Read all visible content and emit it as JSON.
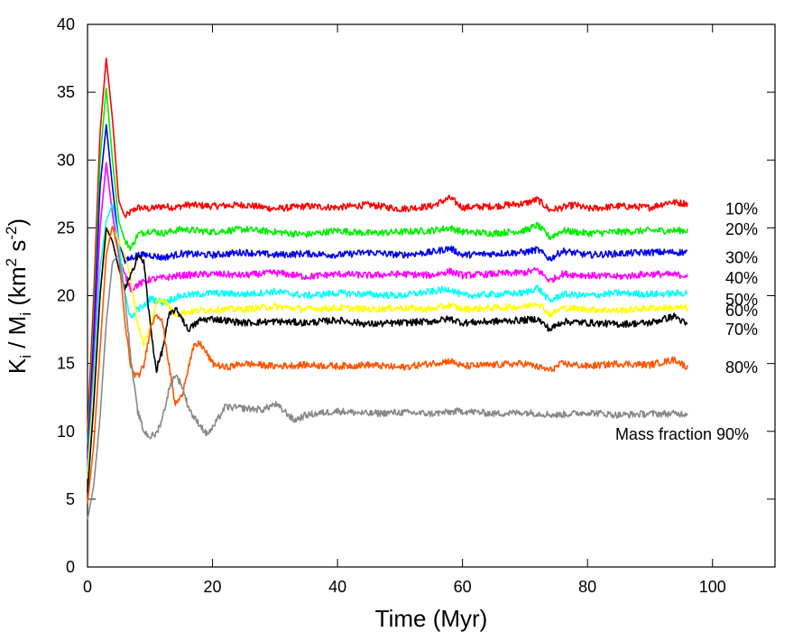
{
  "chart_data": {
    "type": "line",
    "title": "",
    "xlabel": "Time (Myr)",
    "ylabel": {
      "base1": "K",
      "sub1": "i",
      "mid": " / M",
      "sub2": "i",
      "unit_open": " (km",
      "sup1": "2",
      "unit_mid": " s",
      "sup2": "-2",
      "unit_close": ")"
    },
    "xlim": [
      0,
      110
    ],
    "ylim": [
      0,
      40
    ],
    "xticks": [
      0,
      20,
      40,
      60,
      80,
      100
    ],
    "yticks": [
      0,
      5,
      10,
      15,
      20,
      25,
      30,
      35,
      40
    ],
    "grid": false,
    "legend": "inline labels at right end of each series",
    "series": [
      {
        "name": "10%",
        "color": "#ff0000",
        "points": [
          [
            0,
            10
          ],
          [
            1,
            20
          ],
          [
            2,
            32
          ],
          [
            3,
            37.5
          ],
          [
            4,
            33
          ],
          [
            5,
            27
          ],
          [
            6,
            25.8
          ],
          [
            7,
            26.2
          ],
          [
            8,
            26.5
          ],
          [
            10,
            26.4
          ],
          [
            12,
            26.6
          ],
          [
            14,
            26.5
          ],
          [
            16,
            26.7
          ],
          [
            20,
            26.6
          ],
          [
            25,
            26.7
          ],
          [
            30,
            26.4
          ],
          [
            35,
            26.6
          ],
          [
            40,
            26.5
          ],
          [
            45,
            26.7
          ],
          [
            50,
            26.4
          ],
          [
            55,
            26.6
          ],
          [
            58,
            27.2
          ],
          [
            60,
            26.5
          ],
          [
            65,
            26.6
          ],
          [
            70,
            26.8
          ],
          [
            72,
            27.1
          ],
          [
            74,
            26.3
          ],
          [
            78,
            26.7
          ],
          [
            80,
            26.4
          ],
          [
            85,
            26.6
          ],
          [
            90,
            26.5
          ],
          [
            93,
            26.9
          ],
          [
            96,
            26.8
          ]
        ]
      },
      {
        "name": "20%",
        "color": "#00ee00",
        "points": [
          [
            0,
            9
          ],
          [
            1,
            18
          ],
          [
            2,
            30
          ],
          [
            3,
            35.3
          ],
          [
            4,
            30
          ],
          [
            5,
            25.5
          ],
          [
            6,
            24
          ],
          [
            7,
            23.5
          ],
          [
            8,
            24.5
          ],
          [
            10,
            24.8
          ],
          [
            12,
            24.6
          ],
          [
            15,
            24.9
          ],
          [
            20,
            24.7
          ],
          [
            25,
            24.9
          ],
          [
            30,
            24.7
          ],
          [
            35,
            24.5
          ],
          [
            40,
            24.8
          ],
          [
            45,
            24.6
          ],
          [
            50,
            24.7
          ],
          [
            55,
            24.8
          ],
          [
            58,
            25
          ],
          [
            60,
            24.7
          ],
          [
            65,
            24.6
          ],
          [
            70,
            24.8
          ],
          [
            72,
            25.2
          ],
          [
            74,
            24.3
          ],
          [
            76,
            24.8
          ],
          [
            80,
            24.6
          ],
          [
            85,
            24.7
          ],
          [
            90,
            24.8
          ],
          [
            96,
            24.8
          ]
        ]
      },
      {
        "name": "30%",
        "color": "#0000ee",
        "points": [
          [
            0,
            8
          ],
          [
            1,
            17
          ],
          [
            2,
            28
          ],
          [
            3,
            32.6
          ],
          [
            4,
            28
          ],
          [
            5,
            24
          ],
          [
            6,
            22.5
          ],
          [
            7,
            22.8
          ],
          [
            8,
            23
          ],
          [
            10,
            23
          ],
          [
            12,
            22.8
          ],
          [
            15,
            23.1
          ],
          [
            20,
            23
          ],
          [
            25,
            23.2
          ],
          [
            30,
            23
          ],
          [
            35,
            23.1
          ],
          [
            40,
            23
          ],
          [
            45,
            23.2
          ],
          [
            50,
            23
          ],
          [
            55,
            23.2
          ],
          [
            58,
            23.5
          ],
          [
            60,
            23
          ],
          [
            65,
            23.1
          ],
          [
            70,
            23.2
          ],
          [
            72,
            23.4
          ],
          [
            74,
            22.7
          ],
          [
            76,
            23.3
          ],
          [
            80,
            23
          ],
          [
            85,
            23.1
          ],
          [
            90,
            23.2
          ],
          [
            96,
            23.2
          ]
        ]
      },
      {
        "name": "40%",
        "color": "#ff00ff",
        "points": [
          [
            0,
            7.5
          ],
          [
            1,
            15
          ],
          [
            2,
            25
          ],
          [
            3,
            29.8
          ],
          [
            4,
            26
          ],
          [
            5,
            23
          ],
          [
            6,
            21.5
          ],
          [
            7,
            20.5
          ],
          [
            8,
            20.8
          ],
          [
            10,
            21.2
          ],
          [
            12,
            21.3
          ],
          [
            15,
            21.5
          ],
          [
            20,
            21.6
          ],
          [
            25,
            21.5
          ],
          [
            30,
            21.7
          ],
          [
            35,
            21.4
          ],
          [
            40,
            21.6
          ],
          [
            45,
            21.5
          ],
          [
            50,
            21.6
          ],
          [
            55,
            21.5
          ],
          [
            58,
            21.8
          ],
          [
            60,
            21.5
          ],
          [
            65,
            21.6
          ],
          [
            70,
            21.7
          ],
          [
            72,
            21.9
          ],
          [
            74,
            21.1
          ],
          [
            76,
            21.6
          ],
          [
            80,
            21.5
          ],
          [
            85,
            21.4
          ],
          [
            90,
            21.6
          ],
          [
            96,
            21.5
          ]
        ]
      },
      {
        "name": "50%",
        "color": "#00ffff",
        "points": [
          [
            0,
            7
          ],
          [
            1,
            14
          ],
          [
            2,
            22
          ],
          [
            3,
            25.5
          ],
          [
            4,
            26.8
          ],
          [
            5,
            24
          ],
          [
            6,
            20
          ],
          [
            7,
            18.3
          ],
          [
            8,
            19
          ],
          [
            9,
            19.2
          ],
          [
            10,
            19.8
          ],
          [
            12,
            19.5
          ],
          [
            15,
            20
          ],
          [
            20,
            20.2
          ],
          [
            25,
            20.1
          ],
          [
            30,
            20.3
          ],
          [
            35,
            20
          ],
          [
            40,
            20.2
          ],
          [
            45,
            20.1
          ],
          [
            50,
            20
          ],
          [
            55,
            20.3
          ],
          [
            58,
            20.5
          ],
          [
            60,
            20
          ],
          [
            65,
            20.1
          ],
          [
            70,
            20.2
          ],
          [
            72,
            20.6
          ],
          [
            74,
            19.6
          ],
          [
            76,
            20.1
          ],
          [
            80,
            20
          ],
          [
            85,
            20.2
          ],
          [
            90,
            20.1
          ],
          [
            96,
            20.2
          ]
        ]
      },
      {
        "name": "60%",
        "color": "#ffff00",
        "points": [
          [
            0,
            6.5
          ],
          [
            1,
            13
          ],
          [
            2,
            20
          ],
          [
            3,
            24.5
          ],
          [
            4,
            25
          ],
          [
            5,
            24
          ],
          [
            6,
            23
          ],
          [
            7,
            21
          ],
          [
            8,
            18
          ],
          [
            9,
            16.5
          ],
          [
            10,
            17.5
          ],
          [
            11,
            19.5
          ],
          [
            12,
            19.8
          ],
          [
            14,
            18.6
          ],
          [
            16,
            18.8
          ],
          [
            20,
            19
          ],
          [
            25,
            19
          ],
          [
            30,
            19.2
          ],
          [
            35,
            19
          ],
          [
            40,
            19.1
          ],
          [
            45,
            19
          ],
          [
            50,
            19.1
          ],
          [
            55,
            19
          ],
          [
            58,
            19.3
          ],
          [
            60,
            19
          ],
          [
            65,
            19.1
          ],
          [
            70,
            19.2
          ],
          [
            72,
            19.5
          ],
          [
            74,
            18.6
          ],
          [
            76,
            19.1
          ],
          [
            80,
            19
          ],
          [
            85,
            18.9
          ],
          [
            90,
            19.1
          ],
          [
            96,
            19.1
          ]
        ]
      },
      {
        "name": "70%",
        "color": "#000000",
        "points": [
          [
            0,
            5.5
          ],
          [
            1,
            12
          ],
          [
            2,
            20
          ],
          [
            3,
            25
          ],
          [
            4,
            24
          ],
          [
            5,
            22
          ],
          [
            6,
            20.5
          ],
          [
            7,
            21.5
          ],
          [
            8,
            23
          ],
          [
            9,
            22.5
          ],
          [
            10,
            18
          ],
          [
            11,
            14.5
          ],
          [
            12,
            16
          ],
          [
            13,
            18.5
          ],
          [
            14,
            19
          ],
          [
            15,
            18.5
          ],
          [
            16,
            17.5
          ],
          [
            17,
            17.8
          ],
          [
            18,
            18.2
          ],
          [
            20,
            18.3
          ],
          [
            25,
            18
          ],
          [
            30,
            18.1
          ],
          [
            35,
            18
          ],
          [
            40,
            18.2
          ],
          [
            45,
            17.9
          ],
          [
            50,
            18
          ],
          [
            55,
            18.1
          ],
          [
            58,
            18.3
          ],
          [
            60,
            18
          ],
          [
            65,
            18.1
          ],
          [
            70,
            18.2
          ],
          [
            72,
            18.3
          ],
          [
            74,
            17.5
          ],
          [
            76,
            18.1
          ],
          [
            80,
            18
          ],
          [
            85,
            17.9
          ],
          [
            90,
            18
          ],
          [
            94,
            18.5
          ],
          [
            96,
            17.8
          ]
        ]
      },
      {
        "name": "80%",
        "color": "#ff5500",
        "points": [
          [
            0,
            4.7
          ],
          [
            1,
            9
          ],
          [
            2,
            16
          ],
          [
            3,
            23
          ],
          [
            4,
            25.2
          ],
          [
            5,
            23
          ],
          [
            6,
            18
          ],
          [
            7,
            14.5
          ],
          [
            8,
            14
          ],
          [
            9,
            14.8
          ],
          [
            10,
            17.5
          ],
          [
            11,
            18.8
          ],
          [
            12,
            18
          ],
          [
            13,
            15
          ],
          [
            14,
            12
          ],
          [
            15,
            12.5
          ],
          [
            16,
            14.5
          ],
          [
            17,
            16.2
          ],
          [
            18,
            16.5
          ],
          [
            19,
            15.8
          ],
          [
            20,
            15
          ],
          [
            22,
            14.7
          ],
          [
            25,
            15
          ],
          [
            30,
            14.8
          ],
          [
            35,
            14.9
          ],
          [
            40,
            14.8
          ],
          [
            45,
            14.9
          ],
          [
            50,
            14.7
          ],
          [
            55,
            15
          ],
          [
            58,
            15.2
          ],
          [
            60,
            14.8
          ],
          [
            65,
            14.9
          ],
          [
            70,
            15
          ],
          [
            74,
            14.5
          ],
          [
            76,
            15
          ],
          [
            80,
            14.8
          ],
          [
            85,
            15
          ],
          [
            90,
            14.9
          ],
          [
            94,
            15.3
          ],
          [
            96,
            14.7
          ]
        ]
      },
      {
        "name": "Mass fraction 90%",
        "color": "#888888",
        "points": [
          [
            0,
            3.5
          ],
          [
            1,
            6
          ],
          [
            2,
            11
          ],
          [
            3,
            18
          ],
          [
            4,
            22.5
          ],
          [
            5,
            23
          ],
          [
            6,
            20
          ],
          [
            7,
            15
          ],
          [
            8,
            11.5
          ],
          [
            9,
            10
          ],
          [
            10,
            9.6
          ],
          [
            11,
            9.8
          ],
          [
            12,
            11
          ],
          [
            13,
            13
          ],
          [
            14,
            14.2
          ],
          [
            15,
            13.5
          ],
          [
            16,
            12
          ],
          [
            17,
            11
          ],
          [
            18,
            10.5
          ],
          [
            19,
            9.8
          ],
          [
            20,
            10.2
          ],
          [
            21,
            11
          ],
          [
            22,
            11.8
          ],
          [
            25,
            11.7
          ],
          [
            28,
            11.6
          ],
          [
            30,
            12
          ],
          [
            32,
            11.3
          ],
          [
            33,
            10.8
          ],
          [
            35,
            11.2
          ],
          [
            40,
            11.5
          ],
          [
            45,
            11.3
          ],
          [
            50,
            11.4
          ],
          [
            55,
            11.3
          ],
          [
            60,
            11.5
          ],
          [
            65,
            11.3
          ],
          [
            70,
            11.4
          ],
          [
            75,
            11.2
          ],
          [
            80,
            11.4
          ],
          [
            85,
            11.2
          ],
          [
            90,
            11.3
          ],
          [
            96,
            11.3
          ]
        ]
      }
    ]
  }
}
